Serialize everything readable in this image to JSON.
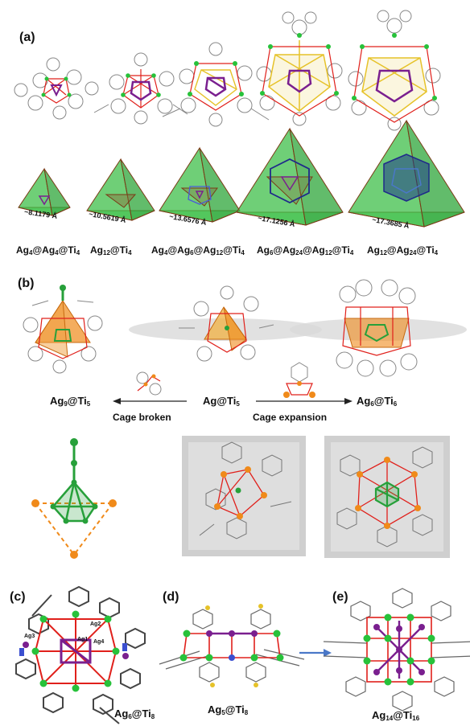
{
  "panels": {
    "a": "(a)",
    "b": "(b)",
    "c": "(c)",
    "d": "(d)",
    "e": "(e)"
  },
  "panel_a": {
    "distances": [
      "~8.1179 Å",
      "~10.5619 Å",
      "~13.6576 Å",
      "~17.1256 Å",
      "~17.3685 Å"
    ],
    "formulas": [
      {
        "parts": [
          [
            "Ag",
            "4"
          ],
          [
            "@Ag",
            "4"
          ],
          [
            "@Ti",
            "4"
          ]
        ]
      },
      {
        "parts": [
          [
            "Ag",
            "12"
          ],
          [
            "@Ti",
            "4"
          ]
        ]
      },
      {
        "parts": [
          [
            "Ag",
            "4"
          ],
          [
            "@Ag",
            "6"
          ],
          [
            "@Ag",
            "12"
          ],
          [
            "@Ti",
            "4"
          ]
        ]
      },
      {
        "parts": [
          [
            "Ag",
            "6"
          ],
          [
            "@Ag",
            "24"
          ],
          [
            "@Ag",
            "12"
          ],
          [
            "@Ti",
            "4"
          ]
        ]
      },
      {
        "parts": [
          [
            "Ag",
            "12"
          ],
          [
            "@Ag",
            "24"
          ],
          [
            "@Ti",
            "4"
          ]
        ]
      }
    ]
  },
  "panel_b": {
    "left_formula": {
      "parts": [
        [
          "Ag",
          "9"
        ],
        [
          "@Ti",
          "5"
        ]
      ]
    },
    "center_formula": {
      "parts": [
        [
          "Ag@Ti",
          "5"
        ]
      ]
    },
    "right_formula": {
      "parts": [
        [
          "Ag",
          "6"
        ],
        [
          "@Ti",
          "6"
        ]
      ]
    },
    "cage_broken": "Cage broken",
    "cage_expansion": "Cage expansion"
  },
  "panel_cde": {
    "c_formula": {
      "parts": [
        [
          "Ag",
          "6"
        ],
        [
          "@Ti",
          "8"
        ]
      ]
    },
    "d_formula": {
      "parts": [
        [
          "Ag",
          "5"
        ],
        [
          "@Ti",
          "8"
        ]
      ]
    },
    "e_formula": {
      "parts": [
        [
          "Ag",
          "14"
        ],
        [
          "@Ti",
          "16"
        ]
      ]
    },
    "c_atom_labels": [
      "Ag1",
      "Ag2",
      "Ag3",
      "Ag4"
    ]
  },
  "colors": {
    "tetra_green": "#3fbf4a",
    "tetra_edge": "#7a3a16",
    "ag_purple": "#7a1f8f",
    "ti_green": "#27c23a",
    "oxygen_red": "#e0201b",
    "gold": "#e6c229",
    "orange": "#f08a1a",
    "arrow_blue": "#4a78c8"
  }
}
